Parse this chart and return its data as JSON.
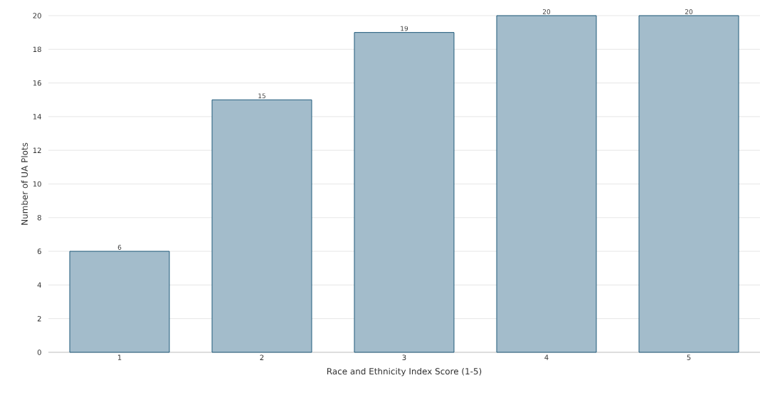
{
  "chart_data": {
    "type": "bar",
    "xlabel": "Race and Ethnicity Index Score (1-5)",
    "ylabel": "Number of UA Plots",
    "categories": [
      "1",
      "2",
      "3",
      "4",
      "5"
    ],
    "values": [
      6,
      15,
      19,
      20,
      20
    ],
    "color": "#a3bccb",
    "ylim": [
      0,
      20
    ],
    "yticks": [
      0,
      2,
      4,
      6,
      8,
      10,
      12,
      14,
      16,
      18,
      20
    ],
    "grid": "y",
    "data_labels": true
  }
}
